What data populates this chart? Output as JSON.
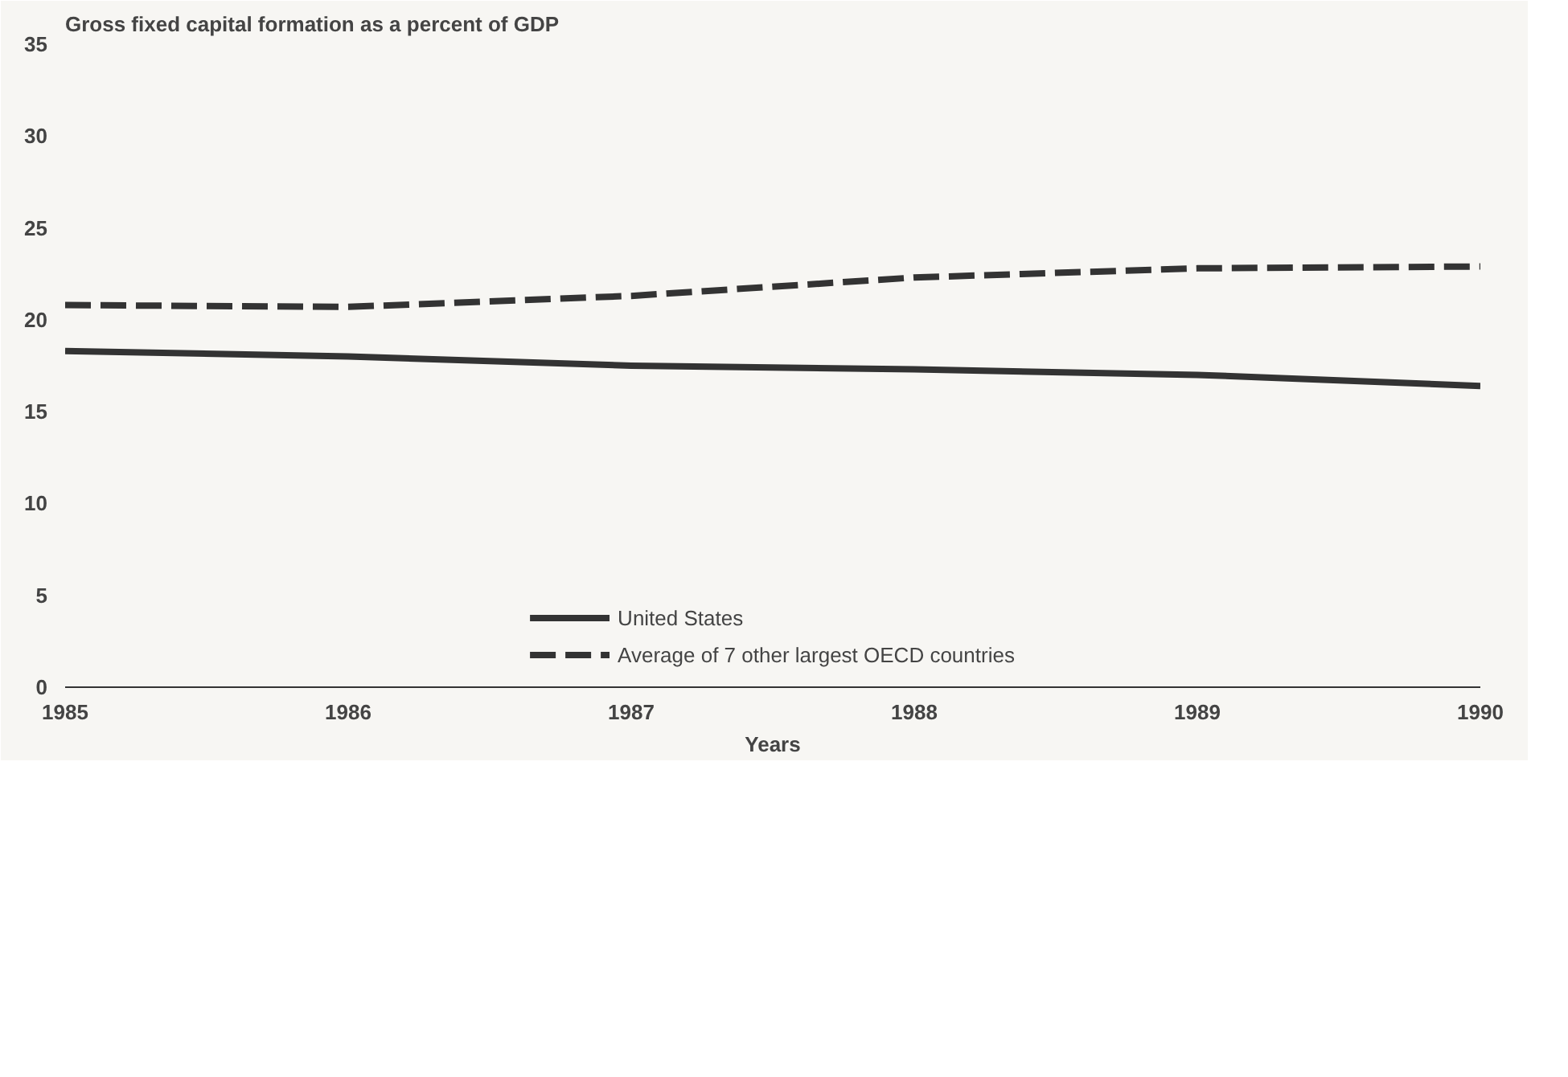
{
  "chart_data": {
    "type": "line",
    "title": "Gross fixed capital formation as a percent of GDP",
    "xlabel": "Years",
    "x": [
      1985,
      1986,
      1987,
      1988,
      1989,
      1990
    ],
    "xlim": [
      1985,
      1990
    ],
    "xticks": [
      1985,
      1986,
      1987,
      1988,
      1989,
      1990
    ],
    "ylim": [
      0,
      35
    ],
    "yticks": [
      0,
      5,
      10,
      15,
      20,
      25,
      30,
      35
    ],
    "grid": false,
    "legend": "bottom",
    "series": [
      {
        "name": "United States",
        "color": "#333333",
        "line_style": "solid",
        "values": [
          18.3,
          18.0,
          17.5,
          17.3,
          17.0,
          16.4
        ]
      },
      {
        "name": "Average of 7 other largest OECD countries",
        "color": "#333333",
        "line_style": "dashed",
        "values": [
          20.8,
          20.7,
          21.3,
          22.3,
          22.8,
          22.9
        ]
      }
    ]
  }
}
